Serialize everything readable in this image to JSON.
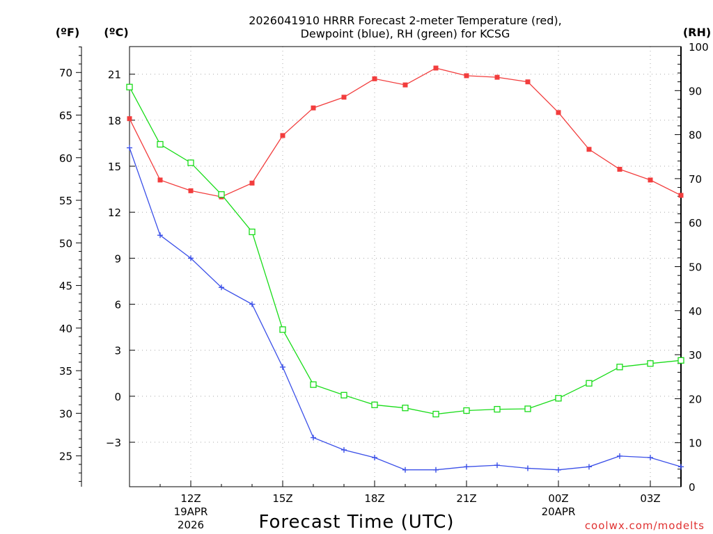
{
  "chart_data": {
    "type": "line",
    "title_lines": [
      "2026041910 HRRR Forecast 2-meter Temperature (red),",
      "Dewpoint (blue), RH (green) for KCSG"
    ],
    "xlabel": "Forecast Time (UTC)",
    "credit": "coolwx.com/modelts",
    "hours": [
      10,
      11,
      12,
      13,
      14,
      15,
      16,
      17,
      18,
      19,
      20,
      21,
      22,
      23,
      24,
      25,
      26,
      27,
      28
    ],
    "xlim": [
      10,
      28
    ],
    "x_ticks": [
      {
        "hour": 12,
        "lines": [
          "12Z",
          "19APR",
          "2026"
        ]
      },
      {
        "hour": 15,
        "lines": [
          "15Z"
        ]
      },
      {
        "hour": 18,
        "lines": [
          "18Z"
        ]
      },
      {
        "hour": 21,
        "lines": [
          "21Z"
        ]
      },
      {
        "hour": 24,
        "lines": [
          "00Z",
          "20APR"
        ]
      },
      {
        "hour": 27,
        "lines": [
          "03Z"
        ]
      }
    ],
    "y_celsius": {
      "unit_label": "(ºC)",
      "ylim": [
        -5.9,
        22.8
      ],
      "ticks": [
        {
          "v": -3,
          "label": "−3"
        },
        {
          "v": 0,
          "label": "0"
        },
        {
          "v": 3,
          "label": "3"
        },
        {
          "v": 6,
          "label": "6"
        },
        {
          "v": 9,
          "label": "9"
        },
        {
          "v": 12,
          "label": "12"
        },
        {
          "v": 15,
          "label": "15"
        },
        {
          "v": 18,
          "label": "18"
        },
        {
          "v": 21,
          "label": "21"
        }
      ]
    },
    "y_fahrenheit": {
      "unit_label": "(ºF)",
      "ticks": [
        {
          "v": 25,
          "label": "25"
        },
        {
          "v": 30,
          "label": "30"
        },
        {
          "v": 35,
          "label": "35"
        },
        {
          "v": 40,
          "label": "40"
        },
        {
          "v": 45,
          "label": "45"
        },
        {
          "v": 50,
          "label": "50"
        },
        {
          "v": 55,
          "label": "55"
        },
        {
          "v": 60,
          "label": "60"
        },
        {
          "v": 65,
          "label": "65"
        },
        {
          "v": 70,
          "label": "70"
        }
      ]
    },
    "y_rh": {
      "unit_label": "(RH)",
      "ylim": [
        0,
        100
      ],
      "ticks": [
        {
          "v": 0,
          "label": "0"
        },
        {
          "v": 10,
          "label": "10"
        },
        {
          "v": 20,
          "label": "20"
        },
        {
          "v": 30,
          "label": "30"
        },
        {
          "v": 40,
          "label": "40"
        },
        {
          "v": 50,
          "label": "50"
        },
        {
          "v": 60,
          "label": "60"
        },
        {
          "v": 70,
          "label": "70"
        },
        {
          "v": 80,
          "label": "80"
        },
        {
          "v": 90,
          "label": "90"
        },
        {
          "v": 100,
          "label": "100"
        }
      ]
    },
    "series": [
      {
        "name": "Temperature (red)",
        "color": "#f23d3d",
        "marker": "filled-square",
        "axis": "celsius",
        "values": [
          18.1,
          14.1,
          13.4,
          13.0,
          13.9,
          17.0,
          18.8,
          19.5,
          20.7,
          20.3,
          21.4,
          20.9,
          20.8,
          20.5,
          18.5,
          16.1,
          14.8,
          14.1,
          13.1
        ]
      },
      {
        "name": "Dewpoint (blue)",
        "color": "#3a4fe8",
        "marker": "plus",
        "axis": "celsius",
        "values": [
          16.2,
          10.5,
          9.0,
          7.1,
          6.0,
          1.9,
          -2.7,
          -3.5,
          -4.0,
          -4.8,
          -4.8,
          -4.6,
          -4.5,
          -4.7,
          -4.8,
          -4.6,
          -3.9,
          -4.0,
          -4.6
        ]
      },
      {
        "name": "RH (green)",
        "color": "#18dc18",
        "marker": "open-square",
        "axis": "rh",
        "values": [
          90.8,
          77.8,
          73.6,
          66.4,
          57.9,
          35.7,
          23.2,
          20.8,
          18.6,
          17.9,
          16.5,
          17.3,
          17.6,
          17.7,
          20.1,
          23.5,
          27.2,
          28.0,
          28.7
        ]
      }
    ]
  }
}
